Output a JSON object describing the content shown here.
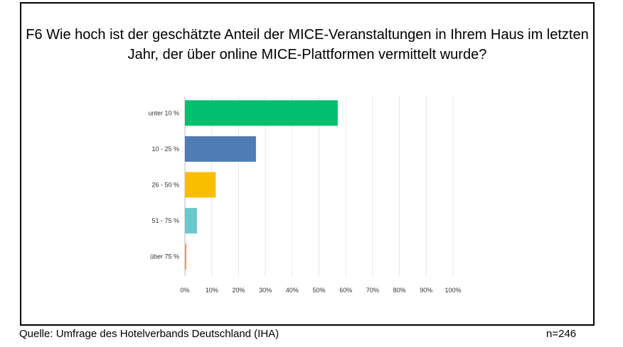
{
  "chart_data": {
    "type": "bar",
    "orientation": "horizontal",
    "title_line1": "F6 Wie hoch ist der geschätzte Anteil der MICE-Veranstaltungen in Ihrem Haus im letzten",
    "title_line2": "Jahr, der über online MICE-Plattformen vermittelt wurde?",
    "categories": [
      "unter 10 %",
      "10 - 25 %",
      "26 - 50 %",
      "51 - 75 %",
      "über 75 %"
    ],
    "values": [
      57,
      26.5,
      11.5,
      4.5,
      0.5
    ],
    "colors": [
      "#00bf6f",
      "#507cb6",
      "#f9be00",
      "#6bc8cd",
      "#ff8b4f"
    ],
    "xlim": [
      0,
      100
    ],
    "xticks": [
      "0%",
      "10%",
      "20%",
      "30%",
      "40%",
      "50%",
      "60%",
      "70%",
      "80%",
      "90%",
      "100%"
    ],
    "grid": true
  },
  "footer": {
    "source": "Quelle: Umfrage des Hotelverbands Deutschland (IHA)",
    "n": "n=246"
  }
}
